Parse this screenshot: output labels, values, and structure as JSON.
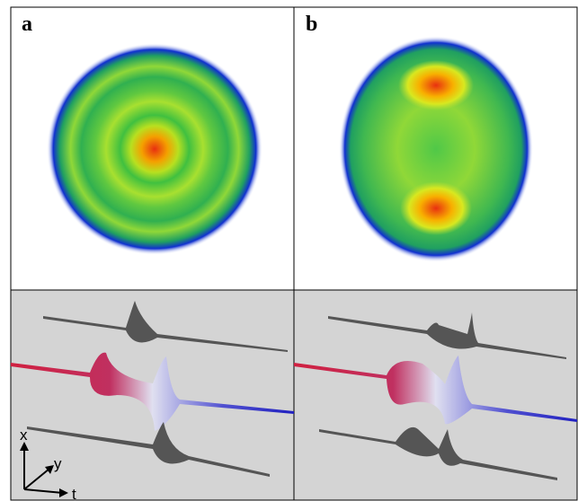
{
  "panels": [
    {
      "label": "a"
    },
    {
      "label": "b"
    }
  ],
  "axes": {
    "x": "x",
    "y": "y",
    "t": "t"
  }
}
